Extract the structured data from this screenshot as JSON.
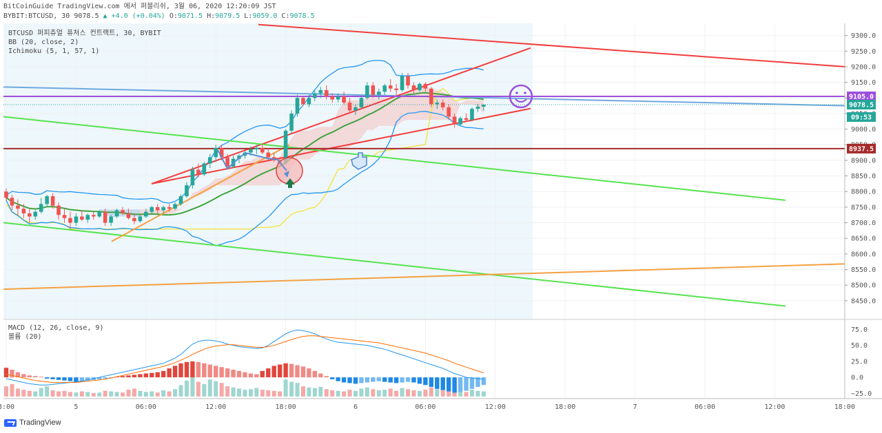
{
  "header": {
    "line1": "BitCoinGuide TradingView.com 에서 퍼블리쉬, 3월 06, 2020 12:20:09 JST",
    "symbol": "BYBIT:BTCUSD, 30",
    "last": "9078.5",
    "change": "▲ +4.0 (+0.04%)",
    "o_label": "O:",
    "o": "9071.5",
    "h_label": "H:",
    "h": "9079.5",
    "l_label": "L:",
    "l": "9059.0",
    "c_label": "C:",
    "c": "9078.5"
  },
  "legend": {
    "symbol": "BTCUSD 퍼피츄얼 퓨처스 컨트랙트, 30, BYBIT",
    "bb": "BB (20, close, 2)",
    "ichimoku": "Ichimoku (5, 1, 57, 1)",
    "macd": "MACD (12, 26, close, 9)",
    "volume": "볼륨 (20)"
  },
  "brand": {
    "name": "TradingView"
  },
  "colors": {
    "up": "#26a69a",
    "down": "#ef5350",
    "bb": "#2196f3",
    "green_line": "#55e34d",
    "red_line": "#f23c3c",
    "orange_line": "#f5a040",
    "blue_line": "#6fa8e0",
    "purple": "#9c4fdc",
    "dark_red": "#a52a2a",
    "yellow": "#f5e23a",
    "ma_green": "#3fa33f",
    "cloud_red": "#f4cccc",
    "cloud_blue": "#b7dcf5"
  },
  "icons": {
    "smiley": "smiley-face-icon",
    "down_arrow": "arrow-down-icon",
    "up_arrow": "arrow-up-icon",
    "pointing_hand": "pointing-hand-icon"
  },
  "chart_data": {
    "type": "candlestick",
    "interval": "30",
    "price_ylim": [
      8410,
      9330
    ],
    "price_ticks": [
      9300.0,
      9250.0,
      9200.0,
      9150.0,
      9100.0,
      9050.0,
      9000.0,
      8950.0,
      8900.0,
      8850.0,
      8800.0,
      8750.0,
      8700.0,
      8650.0,
      8600.0,
      8550.0,
      8500.0,
      8450.0
    ],
    "price_tick_labels": [
      "9300.0",
      "9250.0",
      "9200.0",
      "9150.0",
      "9100.0",
      "9050.0",
      "9000.0",
      "8950.0",
      "8900.0",
      "8850.0",
      "8800.0",
      "8750.0",
      "8700.0",
      "8650.0",
      "8600.0",
      "8550.0",
      "8500.0",
      "8450.0"
    ],
    "price_markers": [
      {
        "label": "9105.0",
        "value": 9105.0,
        "color": "#9c4fdc"
      },
      {
        "label": "9078.5",
        "value": 9078.5,
        "color": "#26a69a"
      },
      {
        "label": "09:53",
        "value": 9050.0,
        "color": "#26a69a"
      },
      {
        "label": "8937.5",
        "value": 8937.5,
        "color": "#a52a2a"
      }
    ],
    "horizontal_levels": [
      {
        "value": 9105.0,
        "color": "#9c4fdc"
      },
      {
        "value": 8937.5,
        "color": "#a52a2a"
      }
    ],
    "macd_ylim": [
      -30,
      82
    ],
    "macd_ticks": [
      75.0,
      50.0,
      25.0,
      0.0,
      -25.0
    ],
    "macd_tick_labels": [
      "75.0",
      "50.0",
      "25.0",
      "0.0",
      "−25.0"
    ],
    "time_labels": [
      "3:00",
      "5",
      "06:00",
      "12:00",
      "18:00",
      "6",
      "06:00",
      "12:00",
      "18:00",
      "7",
      "06:00",
      "12:00",
      "18:00"
    ],
    "time_label_bars": [
      0,
      12,
      24,
      36,
      48,
      60,
      72,
      84,
      96,
      108,
      120,
      132,
      144
    ],
    "candles_ohlc": [
      [
        8800,
        8810,
        8770,
        8780
      ],
      [
        8780,
        8790,
        8740,
        8755
      ],
      [
        8755,
        8775,
        8725,
        8745
      ],
      [
        8745,
        8760,
        8715,
        8730
      ],
      [
        8730,
        8745,
        8700,
        8720
      ],
      [
        8720,
        8740,
        8710,
        8735
      ],
      [
        8735,
        8780,
        8730,
        8760
      ],
      [
        8760,
        8790,
        8750,
        8785
      ],
      [
        8785,
        8795,
        8745,
        8755
      ],
      [
        8755,
        8765,
        8710,
        8725
      ],
      [
        8725,
        8745,
        8700,
        8715
      ],
      [
        8715,
        8735,
        8680,
        8700
      ],
      [
        8700,
        8730,
        8690,
        8720
      ],
      [
        8720,
        8740,
        8705,
        8710
      ],
      [
        8710,
        8730,
        8700,
        8725
      ],
      [
        8725,
        8735,
        8710,
        8720
      ],
      [
        8720,
        8740,
        8715,
        8735
      ],
      [
        8735,
        8745,
        8690,
        8700
      ],
      [
        8700,
        8725,
        8690,
        8720
      ],
      [
        8720,
        8745,
        8715,
        8740
      ],
      [
        8740,
        8750,
        8725,
        8730
      ],
      [
        8730,
        8745,
        8710,
        8715
      ],
      [
        8715,
        8730,
        8695,
        8705
      ],
      [
        8705,
        8725,
        8700,
        8720
      ],
      [
        8720,
        8745,
        8715,
        8735
      ],
      [
        8735,
        8755,
        8725,
        8750
      ],
      [
        8750,
        8760,
        8730,
        8740
      ],
      [
        8740,
        8755,
        8730,
        8750
      ],
      [
        8750,
        8760,
        8735,
        8745
      ],
      [
        8745,
        8765,
        8740,
        8760
      ],
      [
        8760,
        8790,
        8755,
        8785
      ],
      [
        8785,
        8830,
        8780,
        8820
      ],
      [
        8820,
        8880,
        8810,
        8870
      ],
      [
        8870,
        8890,
        8845,
        8855
      ],
      [
        8855,
        8895,
        8850,
        8890
      ],
      [
        8890,
        8920,
        8875,
        8910
      ],
      [
        8910,
        8950,
        8895,
        8940
      ],
      [
        8940,
        8950,
        8900,
        8910
      ],
      [
        8910,
        8920,
        8870,
        8880
      ],
      [
        8880,
        8915,
        8875,
        8905
      ],
      [
        8905,
        8920,
        8890,
        8915
      ],
      [
        8915,
        8930,
        8905,
        8925
      ],
      [
        8925,
        8945,
        8915,
        8935
      ],
      [
        8935,
        8950,
        8920,
        8940
      ],
      [
        8940,
        8955,
        8920,
        8925
      ],
      [
        8925,
        8940,
        8900,
        8910
      ],
      [
        8910,
        8925,
        8895,
        8900
      ],
      [
        8900,
        8910,
        8880,
        8890
      ],
      [
        8890,
        9000,
        8885,
        8995
      ],
      [
        8995,
        9060,
        8985,
        9050
      ],
      [
        9050,
        9110,
        9040,
        9100
      ],
      [
        9100,
        9105,
        9075,
        9080
      ],
      [
        9080,
        9110,
        9070,
        9100
      ],
      [
        9100,
        9125,
        9090,
        9115
      ],
      [
        9115,
        9135,
        9100,
        9125
      ],
      [
        9125,
        9140,
        9095,
        9105
      ],
      [
        9105,
        9115,
        9085,
        9095
      ],
      [
        9095,
        9115,
        9085,
        9105
      ],
      [
        9105,
        9120,
        9080,
        9085
      ],
      [
        9085,
        9100,
        9050,
        9060
      ],
      [
        9060,
        9080,
        9045,
        9070
      ],
      [
        9070,
        9105,
        9065,
        9100
      ],
      [
        9100,
        9150,
        9095,
        9140
      ],
      [
        9140,
        9150,
        9100,
        9110
      ],
      [
        9110,
        9130,
        9095,
        9120
      ],
      [
        9120,
        9145,
        9110,
        9140
      ],
      [
        9140,
        9160,
        9120,
        9130
      ],
      [
        9130,
        9145,
        9110,
        9125
      ],
      [
        9125,
        9180,
        9120,
        9170
      ],
      [
        9170,
        9180,
        9130,
        9140
      ],
      [
        9140,
        9150,
        9115,
        9125
      ],
      [
        9125,
        9150,
        9120,
        9145
      ],
      [
        9145,
        9150,
        9120,
        9130
      ],
      [
        9130,
        9135,
        9070,
        9080
      ],
      [
        9080,
        9095,
        9065,
        9085
      ],
      [
        9085,
        9095,
        9060,
        9070
      ],
      [
        9070,
        9080,
        9030,
        9040
      ],
      [
        9040,
        9050,
        9005,
        9015
      ],
      [
        9015,
        9040,
        9010,
        9035
      ],
      [
        9035,
        9050,
        9025,
        9030
      ],
      [
        9030,
        9070,
        9025,
        9065
      ],
      [
        9065,
        9080,
        9055,
        9072
      ],
      [
        9072,
        9080,
        9059,
        9078.5
      ]
    ],
    "volume": [
      18,
      22,
      14,
      12,
      10,
      9,
      15,
      18,
      11,
      9,
      10,
      8,
      7,
      9,
      8,
      6,
      7,
      10,
      9,
      8,
      7,
      12,
      14,
      10,
      8,
      9,
      7,
      11,
      9,
      13,
      20,
      28,
      34,
      26,
      22,
      30,
      27,
      24,
      18,
      16,
      14,
      12,
      13,
      15,
      12,
      11,
      10,
      9,
      30,
      26,
      24,
      18,
      16,
      15,
      17,
      13,
      11,
      10,
      9,
      12,
      10,
      14,
      16,
      13,
      11,
      12,
      14,
      10,
      15,
      13,
      11,
      10,
      12,
      16,
      13,
      11,
      14,
      10,
      9,
      8,
      12,
      10,
      9
    ],
    "macd_hist": [
      15,
      12,
      8,
      5,
      3,
      2,
      1,
      -2,
      -3,
      -4,
      -5,
      -6,
      -7,
      -6,
      -5,
      -4,
      -3,
      -2,
      -1,
      1,
      2,
      3,
      4,
      5,
      6,
      7,
      8,
      10,
      14,
      18,
      22,
      24,
      25,
      24,
      22,
      20,
      18,
      16,
      14,
      12,
      10,
      8,
      6,
      5,
      10,
      14,
      18,
      20,
      22,
      21,
      19,
      17,
      14,
      10,
      6,
      2,
      -3,
      -6,
      -8,
      -9,
      -10,
      -9,
      -8,
      -7,
      -6,
      -7,
      -8,
      -9,
      -8,
      -7,
      -8,
      -10,
      -12,
      -15,
      -18,
      -20,
      -22,
      -24,
      -23,
      -21,
      -18,
      -15,
      -12
    ],
    "macd_line": [
      -2,
      -4,
      -6,
      -8,
      -10,
      -11,
      -12,
      -12,
      -11,
      -10,
      -9,
      -8,
      -7,
      -6,
      -4,
      -2,
      0,
      2,
      4,
      6,
      8,
      10,
      12,
      14,
      16,
      18,
      20,
      22,
      26,
      30,
      36,
      44,
      52,
      56,
      58,
      58,
      57,
      55,
      52,
      50,
      48,
      47,
      46,
      45,
      46,
      50,
      56,
      62,
      68,
      72,
      74,
      73,
      71,
      68,
      64,
      60,
      57,
      55,
      54,
      53,
      52,
      51,
      50,
      48,
      46,
      44,
      41,
      38,
      35,
      32,
      29,
      26,
      23,
      20,
      17,
      14,
      10,
      6,
      3,
      0,
      -1,
      -2,
      -3
    ],
    "signal_line": [
      5,
      3,
      1,
      -1,
      -3,
      -5,
      -6,
      -7,
      -8,
      -8,
      -8,
      -8,
      -8,
      -7,
      -6,
      -5,
      -4,
      -3,
      -1,
      1,
      3,
      5,
      7,
      9,
      11,
      13,
      15,
      17,
      20,
      23,
      27,
      31,
      36,
      40,
      44,
      47,
      49,
      50,
      51,
      51,
      50,
      49,
      48,
      47,
      47,
      48,
      50,
      53,
      56,
      59,
      62,
      64,
      65,
      65,
      64,
      63,
      62,
      61,
      60,
      59,
      58,
      57,
      56,
      55,
      54,
      52,
      50,
      48,
      46,
      44,
      42,
      40,
      38,
      35,
      32,
      29,
      26,
      22,
      19,
      16,
      13,
      10,
      7
    ]
  }
}
